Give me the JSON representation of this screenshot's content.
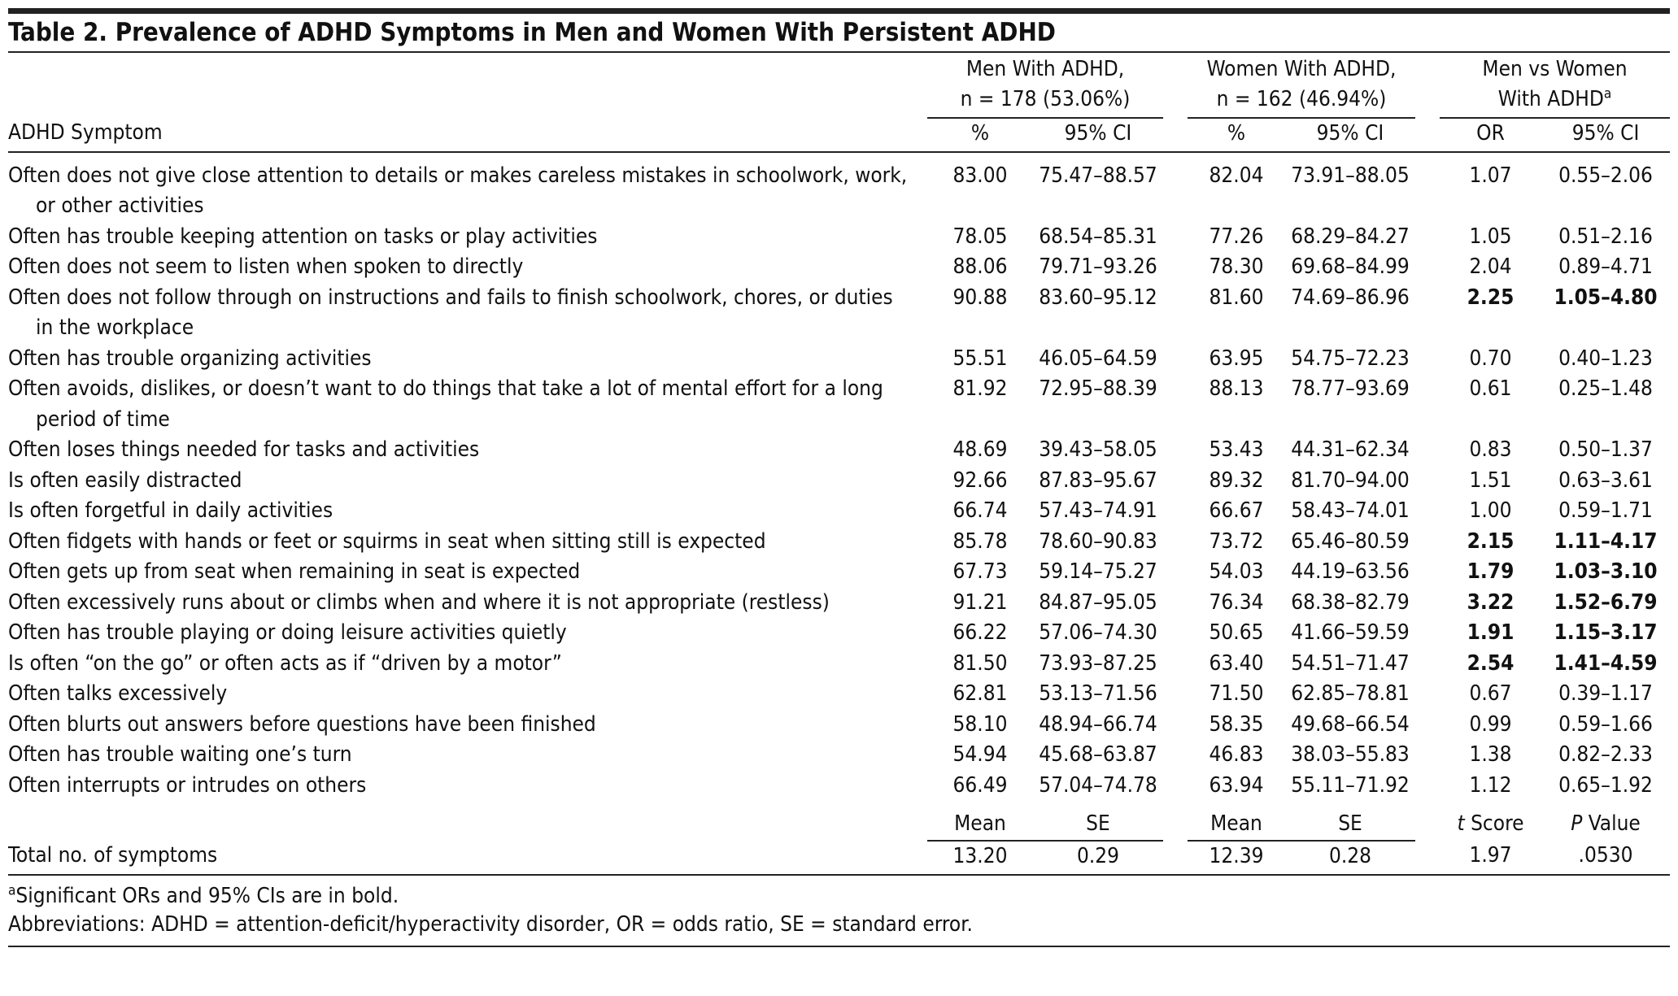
{
  "title": "Table 2. Prevalence of ADHD Symptoms in Men and Women With Persistent ADHD",
  "header": {
    "groups": [
      {
        "lines": [
          "Men With ADHD,",
          "n = 178 (53.06%)"
        ]
      },
      {
        "lines": [
          "Women With ADHD,",
          "n = 162 (46.94%)"
        ]
      },
      {
        "lines": [
          "Men vs Women",
          "With ADHD"
        ],
        "note": "a"
      }
    ],
    "row_label": "ADHD Symptom",
    "subheads": [
      "%",
      "95% CI",
      "%",
      "95% CI",
      "OR",
      "95% CI"
    ]
  },
  "rows": [
    {
      "symptom": "Often does not give close attention to details or makes careless mistakes in schoolwork, work, or other activities",
      "cells": [
        "83.00",
        "75.47–88.57",
        "82.04",
        "73.91–88.05",
        "1.07",
        "0.55–2.06"
      ],
      "significant": false
    },
    {
      "symptom": "Often has trouble keeping attention on tasks or play activities",
      "cells": [
        "78.05",
        "68.54–85.31",
        "77.26",
        "68.29–84.27",
        "1.05",
        "0.51–2.16"
      ],
      "significant": false
    },
    {
      "symptom": "Often does not seem to listen when spoken to directly",
      "cells": [
        "88.06",
        "79.71–93.26",
        "78.30",
        "69.68–84.99",
        "2.04",
        "0.89–4.71"
      ],
      "significant": false
    },
    {
      "symptom": "Often does not follow through on instructions and fails to finish schoolwork, chores, or duties in the workplace",
      "cells": [
        "90.88",
        "83.60–95.12",
        "81.60",
        "74.69–86.96",
        "2.25",
        "1.05–4.80"
      ],
      "significant": true
    },
    {
      "symptom": "Often has trouble organizing activities",
      "cells": [
        "55.51",
        "46.05–64.59",
        "63.95",
        "54.75–72.23",
        "0.70",
        "0.40–1.23"
      ],
      "significant": false
    },
    {
      "symptom": "Often avoids, dislikes, or doesn’t want to do things that take a lot of mental effort for a long period of time",
      "cells": [
        "81.92",
        "72.95–88.39",
        "88.13",
        "78.77–93.69",
        "0.61",
        "0.25–1.48"
      ],
      "significant": false
    },
    {
      "symptom": "Often loses things needed for tasks and activities",
      "cells": [
        "48.69",
        "39.43–58.05",
        "53.43",
        "44.31–62.34",
        "0.83",
        "0.50–1.37"
      ],
      "significant": false
    },
    {
      "symptom": "Is often easily distracted",
      "cells": [
        "92.66",
        "87.83–95.67",
        "89.32",
        "81.70–94.00",
        "1.51",
        "0.63–3.61"
      ],
      "significant": false
    },
    {
      "symptom": "Is often forgetful in daily activities",
      "cells": [
        "66.74",
        "57.43–74.91",
        "66.67",
        "58.43–74.01",
        "1.00",
        "0.59–1.71"
      ],
      "significant": false
    },
    {
      "symptom": "Often fidgets with hands or feet or squirms in seat when sitting still is expected",
      "cells": [
        "85.78",
        "78.60–90.83",
        "73.72",
        "65.46–80.59",
        "2.15",
        "1.11–4.17"
      ],
      "significant": true
    },
    {
      "symptom": "Often gets up from seat when remaining in seat is expected",
      "cells": [
        "67.73",
        "59.14–75.27",
        "54.03",
        "44.19–63.56",
        "1.79",
        "1.03–3.10"
      ],
      "significant": true
    },
    {
      "symptom": "Often excessively runs about or climbs when and where it is not appropriate (restless)",
      "cells": [
        "91.21",
        "84.87–95.05",
        "76.34",
        "68.38–82.79",
        "3.22",
        "1.52–6.79"
      ],
      "significant": true
    },
    {
      "symptom": "Often has trouble playing or doing leisure activities quietly",
      "cells": [
        "66.22",
        "57.06–74.30",
        "50.65",
        "41.66–59.59",
        "1.91",
        "1.15–3.17"
      ],
      "significant": true
    },
    {
      "symptom": "Is often “on the go” or often acts as if “driven by a motor”",
      "cells": [
        "81.50",
        "73.93–87.25",
        "63.40",
        "54.51–71.47",
        "2.54",
        "1.41–4.59"
      ],
      "significant": true
    },
    {
      "symptom": "Often talks excessively",
      "cells": [
        "62.81",
        "53.13–71.56",
        "71.50",
        "62.85–78.81",
        "0.67",
        "0.39–1.17"
      ],
      "significant": false
    },
    {
      "symptom": "Often blurts out answers before questions have been finished",
      "cells": [
        "58.10",
        "48.94–66.74",
        "58.35",
        "49.68–66.54",
        "0.99",
        "0.59–1.66"
      ],
      "significant": false
    },
    {
      "symptom": "Often has trouble waiting one’s turn",
      "cells": [
        "54.94",
        "45.68–63.87",
        "46.83",
        "38.03–55.83",
        "1.38",
        "0.82–2.33"
      ],
      "significant": false
    },
    {
      "symptom": "Often interrupts or intrudes on others",
      "cells": [
        "66.49",
        "57.04–74.78",
        "63.94",
        "55.11–71.92",
        "1.12",
        "0.65–1.92"
      ],
      "significant": false
    }
  ],
  "summary": {
    "subheads": [
      {
        "text": "Mean"
      },
      {
        "text": "SE"
      },
      {
        "text": "Mean"
      },
      {
        "text": "SE"
      },
      {
        "em": "t",
        "text": " Score"
      },
      {
        "em": "P",
        "text": " Value"
      }
    ],
    "label": "Total no. of symptoms",
    "cells": [
      "13.20",
      "0.29",
      "12.39",
      "0.28",
      "1.97",
      ".0530"
    ]
  },
  "footnotes": [
    {
      "mark": "a",
      "text": "Significant ORs and 95% CIs are in bold."
    },
    {
      "text": "Abbreviations: ADHD = attention-deficit/hyperactivity disorder, OR = odds ratio, SE = standard error."
    }
  ]
}
